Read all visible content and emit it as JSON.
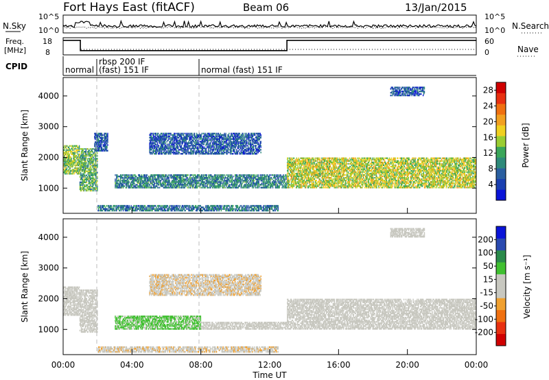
{
  "header": {
    "station": "Fort Hays East (fitACF)",
    "beam": "Beam 06",
    "date": "13/Jan/2015"
  },
  "info_panels": {
    "nsky_label": "N.Sky",
    "nsearch_label": "N.Search",
    "noise_ticks": [
      "10^5",
      "10^0"
    ],
    "freq_label_1": "Freq.",
    "freq_label_2": "[MHz]",
    "freq_ticks": [
      "18",
      "8"
    ],
    "nave_label": "Nave",
    "nave_ticks": [
      "60",
      "0"
    ],
    "cpid_label": "CPID",
    "cpid_segments": [
      {
        "start_h": 0.0,
        "end_h": 2.0,
        "line1": "normal",
        "line2": ""
      },
      {
        "start_h": 2.0,
        "end_h": 8.0,
        "line1": "rbsp 200 IF",
        "line2": "(fast) 151 IF"
      },
      {
        "start_h": 8.0,
        "end_h": 24.0,
        "line1": "normal (fast) 151 IF",
        "line2": ""
      }
    ],
    "freq_mhz_segments": [
      {
        "start_h": 0.0,
        "end_h": 1.0,
        "value": 16.5
      },
      {
        "start_h": 1.0,
        "end_h": 13.0,
        "value": 10.5
      },
      {
        "start_h": 13.0,
        "end_h": 24.0,
        "value": 16.5
      }
    ]
  },
  "time_axis": {
    "label": "Time UT",
    "ticks": [
      "00:00",
      "04:00",
      "08:00",
      "12:00",
      "16:00",
      "20:00",
      "00:00"
    ]
  },
  "chart_data": [
    {
      "type": "heatmap",
      "title": "Power",
      "xlabel": "Time UT",
      "ylabel": "Slant Range [km]",
      "xlim_hours": [
        0,
        24
      ],
      "ylim_km": [
        180,
        4600
      ],
      "yticks": [
        "1000",
        "2000",
        "3000",
        "4000"
      ],
      "colorbar": {
        "label": "Power [dB]",
        "ticks": [
          "28",
          "24",
          "20",
          "16",
          "12",
          "8",
          "4"
        ],
        "range": [
          0,
          30
        ],
        "colors": [
          "#0a14d8",
          "#1a3fb0",
          "#2a5fa0",
          "#2e8a7a",
          "#3aa65a",
          "#9acd32",
          "#f0d020",
          "#f2a020",
          "#f07010",
          "#e83010",
          "#d00000"
        ]
      },
      "echo_regions": [
        {
          "t0": 0.0,
          "t1": 0.95,
          "r0": 1450,
          "r1": 2400,
          "power": 14
        },
        {
          "t0": 0.95,
          "t1": 2.0,
          "r0": 900,
          "r1": 2300,
          "power": 12
        },
        {
          "t0": 1.8,
          "t1": 2.6,
          "r0": 2200,
          "r1": 2800,
          "power": 6
        },
        {
          "t0": 3.0,
          "t1": 13.0,
          "r0": 1000,
          "r1": 1450,
          "power": 9
        },
        {
          "t0": 5.0,
          "t1": 11.5,
          "r0": 2100,
          "r1": 2800,
          "power": 6
        },
        {
          "t0": 2.0,
          "t1": 12.5,
          "r0": 250,
          "r1": 450,
          "power": 8
        },
        {
          "t0": 13.0,
          "t1": 24.0,
          "r0": 1000,
          "r1": 2000,
          "power": 16
        },
        {
          "t0": 19.0,
          "t1": 21.0,
          "r0": 4000,
          "r1": 4300,
          "power": 6
        }
      ]
    },
    {
      "type": "heatmap",
      "title": "Velocity",
      "xlabel": "Time UT",
      "ylabel": "Slant Range [km]",
      "xlim_hours": [
        0,
        24
      ],
      "ylim_km": [
        180,
        4600
      ],
      "yticks": [
        "1000",
        "2000",
        "3000",
        "4000"
      ],
      "colorbar": {
        "label": "Velocity [m s⁻¹]",
        "ticks": [
          "200",
          "100",
          "50",
          "15",
          "-15",
          "-50",
          "-100",
          "-200"
        ],
        "range": [
          -250,
          250
        ],
        "colors": [
          "#d00000",
          "#e83010",
          "#f07010",
          "#f0a030",
          "#c8c8c0",
          "#c8c8c0",
          "#40c030",
          "#2a8a4a",
          "#2a4ab0",
          "#0a14d8"
        ]
      },
      "echo_regions": [
        {
          "t0": 0.0,
          "t1": 0.95,
          "r0": 1450,
          "r1": 2400,
          "velocity": -5
        },
        {
          "t0": 0.95,
          "t1": 2.0,
          "r0": 900,
          "r1": 2300,
          "velocity": -30
        },
        {
          "t0": 3.0,
          "t1": 8.0,
          "r0": 1000,
          "r1": 1450,
          "velocity": 60
        },
        {
          "t0": 8.0,
          "t1": 13.0,
          "r0": 1000,
          "r1": 1250,
          "velocity": -10
        },
        {
          "t0": 5.0,
          "t1": 11.5,
          "r0": 2100,
          "r1": 2800,
          "velocity": -40
        },
        {
          "t0": 2.0,
          "t1": 12.5,
          "r0": 250,
          "r1": 450,
          "velocity": -40
        },
        {
          "t0": 13.0,
          "t1": 24.0,
          "r0": 1000,
          "r1": 2000,
          "velocity": -5
        },
        {
          "t0": 19.0,
          "t1": 21.0,
          "r0": 4000,
          "r1": 4300,
          "velocity": 30
        }
      ]
    }
  ]
}
